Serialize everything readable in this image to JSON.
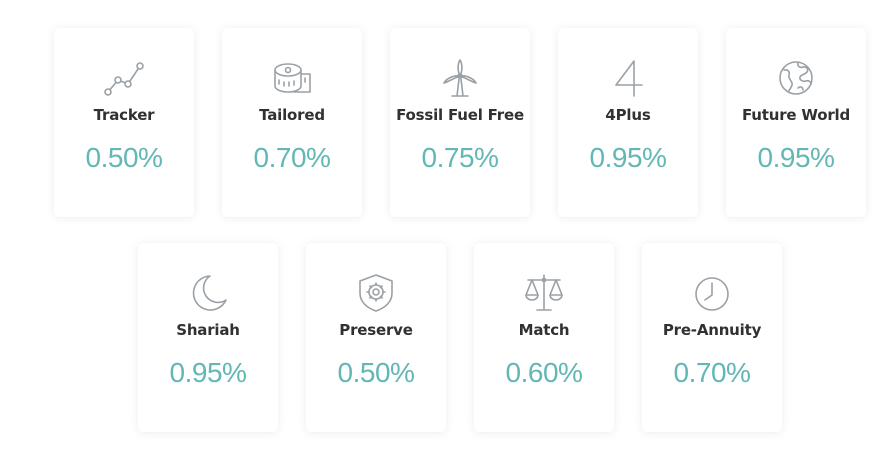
{
  "funds": [
    {
      "name": "Tracker",
      "rate": "0.50%",
      "icon": "line-chart-icon"
    },
    {
      "name": "Tailored",
      "rate": "0.70%",
      "icon": "measuring-tape-icon"
    },
    {
      "name": "Fossil Fuel Free",
      "rate": "0.75%",
      "icon": "wind-turbine-icon"
    },
    {
      "name": "4Plus",
      "rate": "0.95%",
      "icon": "number-four-icon"
    },
    {
      "name": "Future World",
      "rate": "0.95%",
      "icon": "globe-icon"
    },
    {
      "name": "Shariah",
      "rate": "0.95%",
      "icon": "crescent-moon-icon"
    },
    {
      "name": "Preserve",
      "rate": "0.50%",
      "icon": "shield-icon"
    },
    {
      "name": "Match",
      "rate": "0.60%",
      "icon": "scales-icon"
    },
    {
      "name": "Pre-Annuity",
      "rate": "0.70%",
      "icon": "clock-icon"
    }
  ],
  "colors": {
    "rate": "#63b7b5",
    "name": "#2f3133",
    "icon": "#9aa1a6",
    "card_bg": "#ffffff"
  }
}
